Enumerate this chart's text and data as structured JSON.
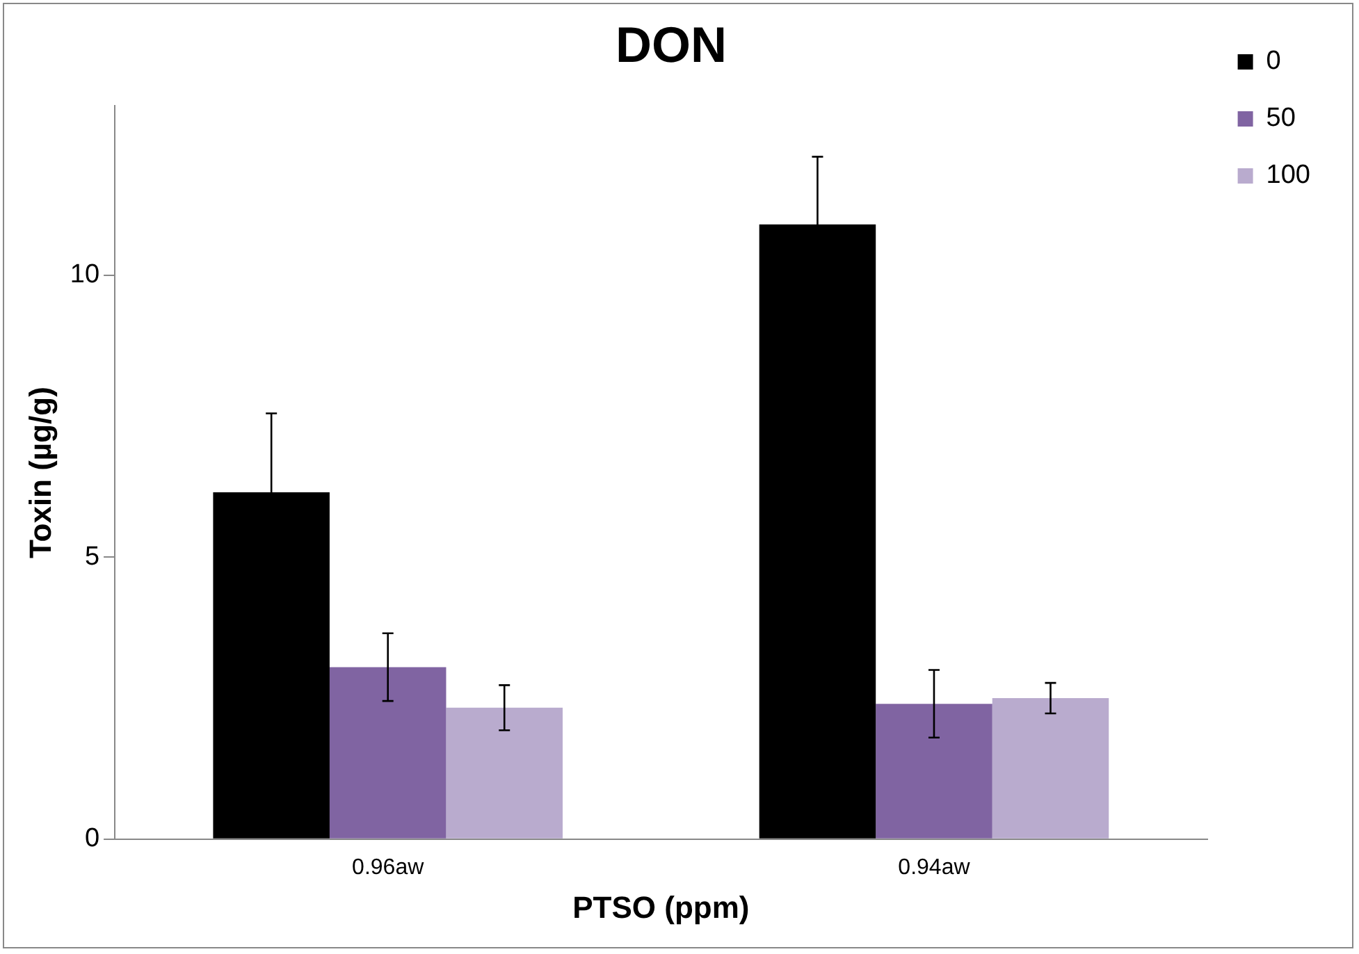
{
  "chart_data": {
    "type": "bar",
    "title": "DON",
    "xlabel": "PTSO (ppm)",
    "ylabel": "Toxin (µg/g)",
    "categories": [
      "0.96aw",
      "0.94aw"
    ],
    "series": [
      {
        "name": "0",
        "color": "#000000",
        "values": [
          6.15,
          10.9
        ],
        "errors": [
          1.4,
          1.2
        ]
      },
      {
        "name": "50",
        "color": "#8064a2",
        "values": [
          3.05,
          2.4
        ],
        "errors": [
          0.6,
          0.6
        ]
      },
      {
        "name": "100",
        "color": "#b9abce",
        "values": [
          2.33,
          2.5
        ],
        "errors": [
          0.4,
          0.27
        ]
      }
    ],
    "ylim": [
      0,
      13
    ],
    "yticks": [
      0,
      5,
      10
    ],
    "grid": false,
    "legend": "right"
  }
}
